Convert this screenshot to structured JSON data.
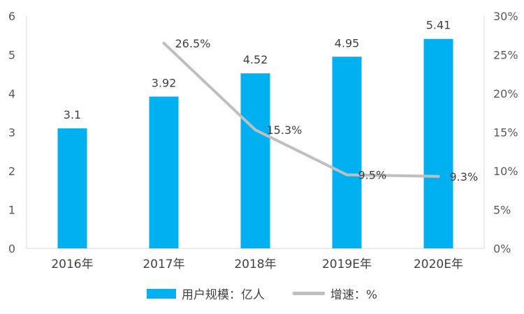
{
  "chart_data": {
    "type": "bar",
    "categories": [
      "2016年",
      "2017年",
      "2018年",
      "2019E年",
      "2020E年"
    ],
    "series": [
      {
        "name": "用户规模：亿人",
        "type": "bar",
        "axis": "left",
        "values": [
          3.1,
          3.92,
          4.52,
          4.95,
          5.41
        ],
        "labels": [
          "3.1",
          "3.92",
          "4.52",
          "4.95",
          "5.41"
        ],
        "color": "#00B0F0"
      },
      {
        "name": "增速：%",
        "type": "line",
        "axis": "right",
        "values": [
          null,
          26.5,
          15.3,
          9.5,
          9.3
        ],
        "labels": [
          "",
          "26.5%",
          "15.3%",
          "9.5%",
          "9.3%"
        ],
        "color": "#BFBFBF"
      }
    ],
    "y_left": {
      "ylim": [
        0,
        6
      ],
      "ticks": [
        "0",
        "1",
        "2",
        "3",
        "4",
        "5",
        "6"
      ]
    },
    "y_right": {
      "ylim": [
        0,
        30
      ],
      "ticks": [
        "0%",
        "5%",
        "10%",
        "15%",
        "20%",
        "25%",
        "30%"
      ]
    },
    "grid": false,
    "legend": "bottom"
  }
}
